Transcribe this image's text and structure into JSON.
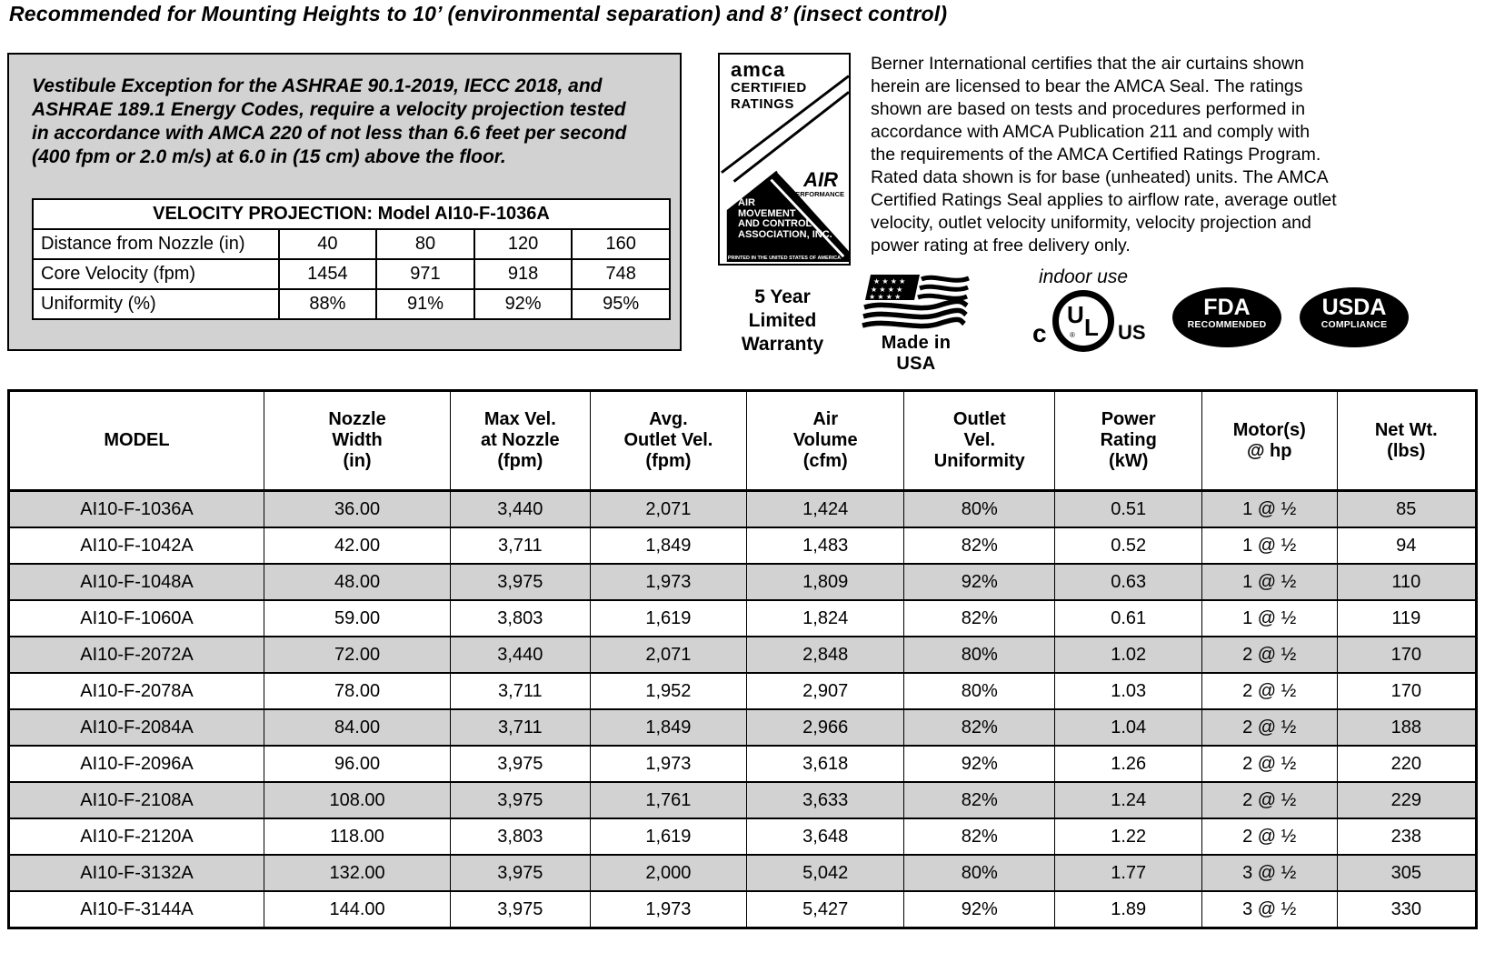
{
  "page": {
    "title": "Recommended for Mounting Heights to 10’ (environmental separation) and 8’ (insect control)"
  },
  "vestibule_box": {
    "text": "Vestibule Exception for the ASHRAE 90.1-2019, IECC 2018, and\nASHRAE 189.1 Energy Codes, require a velocity projection tested\nin accordance with AMCA 220 of not less than 6.6 feet per second\n(400 fpm or 2.0 m/s) at 6.0 in (15 cm) above the floor.",
    "table": {
      "title": "VELOCITY PROJECTION: Model AI10-F-1036A",
      "rows": [
        {
          "label": "Distance from Nozzle (in)",
          "values": [
            "40",
            "80",
            "120",
            "160"
          ]
        },
        {
          "label": "Core Velocity (fpm)",
          "values": [
            "1454",
            "971",
            "918",
            "748"
          ]
        },
        {
          "label": "Uniformity (%)",
          "values": [
            "88%",
            "91%",
            "92%",
            "95%"
          ]
        }
      ]
    }
  },
  "amca_seal": {
    "brand": "amca",
    "certified": "CERTIFIED",
    "ratings": "RATINGS",
    "air": "AIR",
    "performance": "PERFORMANCE",
    "association": "AIR\nMOVEMENT\nAND CONTROL\nASSOCIATION, INC.",
    "fine_print": "PRINTED IN THE UNITED STATES OF AMERICA"
  },
  "certification_text": "Berner International certifies that the air curtains shown\nherein are licensed to bear the AMCA Seal.  The ratings\nshown are based on tests and procedures performed in\naccordance with AMCA Publication 211 and comply with\nthe requirements of the AMCA Certified Ratings Program.\nRated data shown is for base (unheated) units.  The AMCA\nCertified Ratings Seal applies to airflow rate, average outlet\nvelocity, outlet velocity uniformity, velocity projection and\npower rating  at free delivery only.",
  "badges": {
    "warranty": "5 Year\nLimited\nWarranty",
    "made_in_usa": "Made in USA",
    "indoor_use": "indoor use",
    "ul": {
      "c": "c",
      "u": "U",
      "l": "L",
      "us": "US",
      "registered": "®"
    },
    "fda": {
      "line1": "FDA",
      "line2": "RECOMMENDED"
    },
    "usda": {
      "line1": "USDA",
      "line2": "COMPLIANCE"
    }
  },
  "main_table": {
    "headers": [
      "MODEL",
      "Nozzle\nWidth\n(in)",
      "Max Vel.\nat Nozzle\n(fpm)",
      "Avg.\nOutlet Vel.\n(fpm)",
      "Air\nVolume\n(cfm)",
      "Outlet\nVel.\nUniformity",
      "Power\nRating\n(kW)",
      "Motor(s)\n@ hp",
      "Net Wt.\n(lbs)"
    ],
    "rows": [
      [
        "AI10-F-1036A",
        "36.00",
        "3,440",
        "2,071",
        "1,424",
        "80%",
        "0.51",
        "1 @ ½",
        "85"
      ],
      [
        "AI10-F-1042A",
        "42.00",
        "3,711",
        "1,849",
        "1,483",
        "82%",
        "0.52",
        "1 @ ½",
        "94"
      ],
      [
        "AI10-F-1048A",
        "48.00",
        "3,975",
        "1,973",
        "1,809",
        "92%",
        "0.63",
        "1 @ ½",
        "110"
      ],
      [
        "AI10-F-1060A",
        "59.00",
        "3,803",
        "1,619",
        "1,824",
        "82%",
        "0.61",
        "1 @ ½",
        "119"
      ],
      [
        "AI10-F-2072A",
        "72.00",
        "3,440",
        "2,071",
        "2,848",
        "80%",
        "1.02",
        "2 @ ½",
        "170"
      ],
      [
        "AI10-F-2078A",
        "78.00",
        "3,711",
        "1,952",
        "2,907",
        "80%",
        "1.03",
        "2 @ ½",
        "170"
      ],
      [
        "AI10-F-2084A",
        "84.00",
        "3,711",
        "1,849",
        "2,966",
        "82%",
        "1.04",
        "2 @ ½",
        "188"
      ],
      [
        "AI10-F-2096A",
        "96.00",
        "3,975",
        "1,973",
        "3,618",
        "92%",
        "1.26",
        "2 @ ½",
        "220"
      ],
      [
        "AI10-F-2108A",
        "108.00",
        "3,975",
        "1,761",
        "3,633",
        "82%",
        "1.24",
        "2 @ ½",
        "229"
      ],
      [
        "AI10-F-2120A",
        "118.00",
        "3,803",
        "1,619",
        "3,648",
        "82%",
        "1.22",
        "2 @ ½",
        "238"
      ],
      [
        "AI10-F-3132A",
        "132.00",
        "3,975",
        "2,000",
        "5,042",
        "80%",
        "1.77",
        "3 @ ½",
        "305"
      ],
      [
        "AI10-F-3144A",
        "144.00",
        "3,975",
        "1,973",
        "5,427",
        "92%",
        "1.89",
        "3 @ ½",
        "330"
      ]
    ]
  },
  "colors": {
    "shaded_row": "#d2d2d2",
    "box_background": "#d2d2d2",
    "badge_background": "#000000",
    "text": "#000000"
  }
}
